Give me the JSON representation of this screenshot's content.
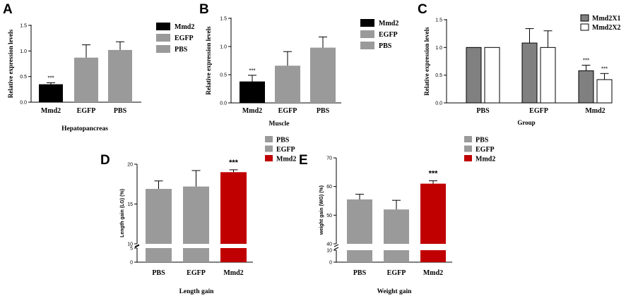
{
  "chart_data": [
    {
      "panel": "A",
      "type": "bar",
      "categories": [
        "Mmd2",
        "EGFP",
        "PBS"
      ],
      "values": [
        0.35,
        0.87,
        1.02
      ],
      "errors": [
        0.03,
        0.25,
        0.16
      ],
      "bar_colors": [
        "#000000",
        "#9a9a9a",
        "#9a9a9a"
      ],
      "significance": [
        "***",
        "",
        ""
      ],
      "ylim": [
        0,
        1.5
      ],
      "yticks": [
        "0.0",
        "0.5",
        "1.0",
        "1.5"
      ],
      "ylabel": "Relative expression levels",
      "title": "Hepatopancreas",
      "legend": [
        "Mmd2",
        "EGFP",
        "PBS"
      ]
    },
    {
      "panel": "B",
      "type": "bar",
      "categories": [
        "Mmd2",
        "EGFP",
        "PBS"
      ],
      "values": [
        0.38,
        0.66,
        0.98
      ],
      "errors": [
        0.11,
        0.25,
        0.19
      ],
      "bar_colors": [
        "#000000",
        "#9a9a9a",
        "#9a9a9a"
      ],
      "significance": [
        "***",
        "",
        ""
      ],
      "ylim": [
        0,
        1.5
      ],
      "yticks": [
        "0.0",
        "0.5",
        "1.0",
        "1.5"
      ],
      "ylabel": "Relative expression levels",
      "title": "Muscle",
      "legend": [
        "Mmd2",
        "EGFP",
        "PBS"
      ]
    },
    {
      "panel": "C",
      "type": "bar",
      "categories": [
        "PBS",
        "EGFP",
        "Mmd2"
      ],
      "series": [
        {
          "name": "Mmd2X1",
          "color": "#808080",
          "values": [
            1.0,
            1.08,
            0.58
          ],
          "errors": [
            0,
            0.26,
            0.1
          ]
        },
        {
          "name": "Mmd2X2",
          "color": "#ffffff",
          "values": [
            1.0,
            1.0,
            0.42
          ],
          "errors": [
            0,
            0.3,
            0.11
          ]
        }
      ],
      "significance": [
        [
          "",
          ""
        ],
        [
          "",
          ""
        ],
        [
          "***",
          "***"
        ]
      ],
      "ylim": [
        0,
        1.5
      ],
      "yticks": [
        "0.0",
        "0.5",
        "1.0",
        "1.5"
      ],
      "ylabel": "Relative expression levels",
      "xlabel": "Group",
      "legend": [
        "Mmd2X1",
        "Mmd2X2"
      ]
    },
    {
      "panel": "D",
      "type": "bar",
      "categories": [
        "PBS",
        "EGFP",
        "Mmd2"
      ],
      "values": [
        16.9,
        17.2,
        19.0
      ],
      "errors": [
        1.0,
        2.0,
        0.3
      ],
      "bar_colors": [
        "#9a9a9a",
        "#9a9a9a",
        "#c00000"
      ],
      "significance": [
        "",
        "",
        "***"
      ],
      "axis_break": [
        5,
        10
      ],
      "ylim_lower": [
        0,
        5
      ],
      "yticks_lower": [
        "0",
        "5"
      ],
      "ylim_upper": [
        10,
        20
      ],
      "yticks_upper": [
        "10",
        "15",
        "20"
      ],
      "ylabel": "Length gain (LG) (%)",
      "title": "Length gain",
      "legend": [
        "PBS",
        "EGFP",
        "Mmd2"
      ]
    },
    {
      "panel": "E",
      "type": "bar",
      "categories": [
        "PBS",
        "EGFP",
        "Mmd2"
      ],
      "values": [
        55.5,
        52.0,
        61.0
      ],
      "errors": [
        1.8,
        3.2,
        1.0
      ],
      "bar_colors": [
        "#9a9a9a",
        "#9a9a9a",
        "#c00000"
      ],
      "significance": [
        "",
        "",
        "***"
      ],
      "axis_break": [
        10,
        40
      ],
      "ylim_lower": [
        0,
        10
      ],
      "yticks_lower": [
        "0",
        "10"
      ],
      "ylim_upper": [
        40,
        70
      ],
      "yticks_upper": [
        "40",
        "50",
        "60",
        "70"
      ],
      "ylabel": "weight gain (WG) (%)",
      "title": "Weight gain",
      "legend": [
        "PBS",
        "EGFP",
        "Mmd2"
      ]
    }
  ]
}
